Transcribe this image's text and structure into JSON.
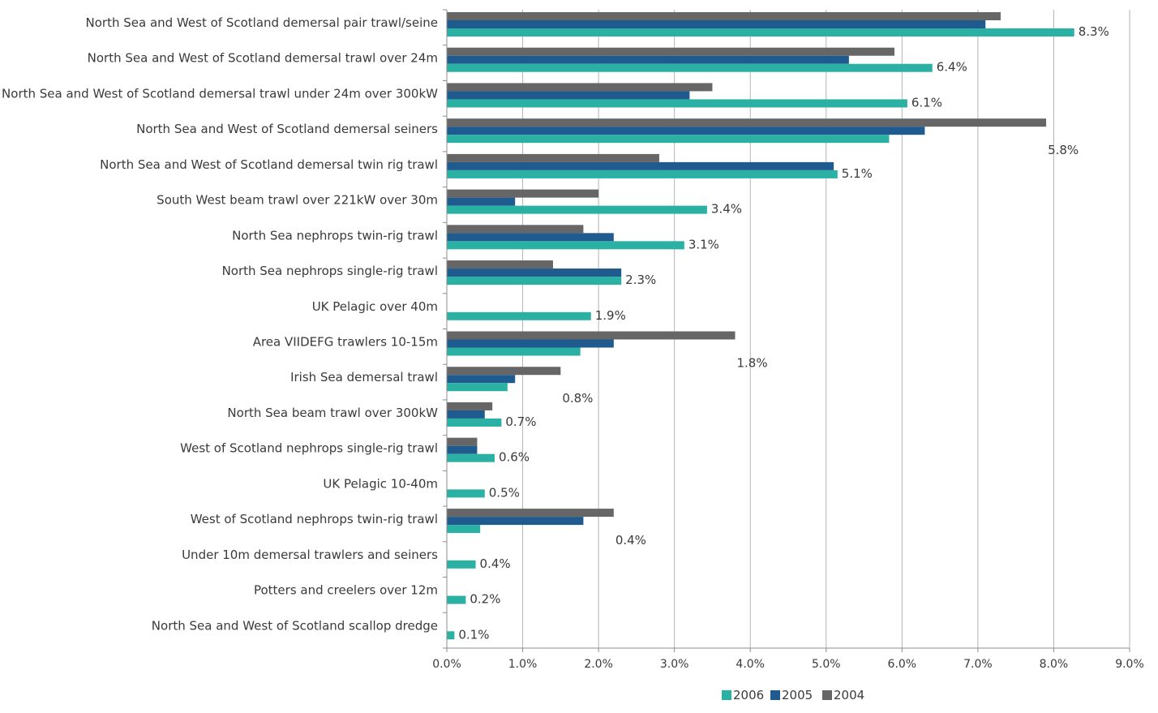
{
  "chart_data": {
    "type": "bar",
    "orientation": "horizontal",
    "title": "",
    "xlabel": "",
    "ylabel": "",
    "xlim": [
      0,
      9
    ],
    "x_ticks": [
      "0.0%",
      "1.0%",
      "2.0%",
      "3.0%",
      "4.0%",
      "5.0%",
      "6.0%",
      "7.0%",
      "8.0%",
      "9.0%"
    ],
    "grid": "vertical",
    "legend_position": "bottom",
    "categories": [
      "North Sea and West of Scotland demersal pair trawl/seine",
      "North Sea and West of Scotland demersal trawl over 24m",
      "North Sea and West of Scotland demersal trawl under 24m over 300kW",
      "North Sea and West of Scotland demersal seiners",
      "North Sea and West of Scotland demersal twin rig trawl",
      "South West beam trawl over 221kW over 30m",
      "North Sea nephrops twin-rig trawl",
      "North Sea nephrops single-rig trawl",
      "UK Pelagic over 40m",
      "Area VIIDEFG trawlers 10-15m",
      "Irish Sea demersal trawl",
      "North Sea beam trawl over 300kW",
      "West of Scotland nephrops single-rig trawl",
      "UK Pelagic 10-40m",
      "West of Scotland nephrops twin-rig trawl",
      "Under 10m demersal trawlers and seiners",
      "Potters and creelers over 12m",
      "North Sea and West of Scotland scallop dredge"
    ],
    "series": [
      {
        "name": "2004",
        "color": "#666666",
        "values": [
          7.3,
          5.9,
          3.5,
          7.9,
          2.8,
          2.0,
          1.8,
          1.4,
          null,
          3.8,
          1.5,
          0.6,
          0.4,
          null,
          2.2,
          null,
          null,
          null
        ]
      },
      {
        "name": "2005",
        "color": "#1f5b8e",
        "values": [
          7.1,
          5.3,
          3.2,
          6.3,
          5.1,
          0.9,
          2.2,
          2.3,
          null,
          2.2,
          0.9,
          0.5,
          0.4,
          null,
          1.8,
          null,
          null,
          null
        ]
      },
      {
        "name": "2006",
        "color": "#2bb0a4",
        "values": [
          8.27,
          6.4,
          6.07,
          5.83,
          5.15,
          3.43,
          3.13,
          2.3,
          1.9,
          1.76,
          0.8,
          0.72,
          0.63,
          0.5,
          0.44,
          0.38,
          0.25,
          0.1
        ]
      }
    ],
    "data_labels_2006": [
      "8.3%",
      "6.4%",
      "6.1%",
      "5.8%",
      "5.1%",
      "3.4%",
      "3.1%",
      "2.3%",
      "1.9%",
      "1.8%",
      "0.8%",
      "0.7%",
      "0.6%",
      "0.5%",
      "0.4%",
      "0.4%",
      "0.2%",
      "0.1%"
    ],
    "legend_order": [
      "2006",
      "2005",
      "2004"
    ]
  }
}
